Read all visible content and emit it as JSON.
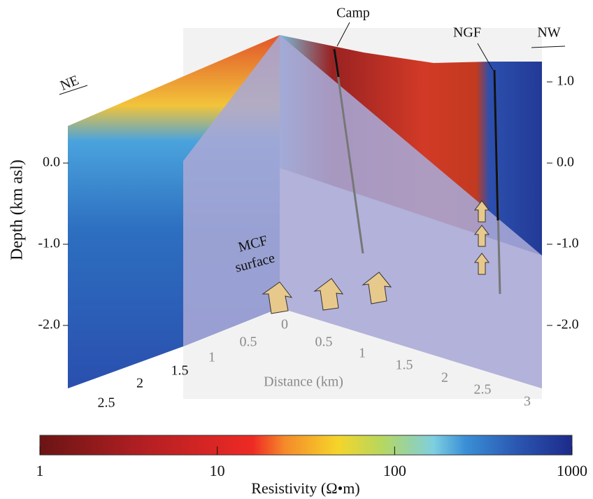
{
  "figure": {
    "labels": {
      "camp": "Camp",
      "ngf": "NGF",
      "nw": "NW",
      "ne": "NE",
      "mcf_1": "MCF",
      "mcf_2": "surface"
    },
    "depth_axis": {
      "label": "Depth (km asl)",
      "lim": [
        1.0,
        -2.0
      ],
      "left_ticks": [
        {
          "value": 0,
          "label": "0.0"
        },
        {
          "value": -1,
          "label": "-1.0"
        },
        {
          "value": -2,
          "label": "-2.0"
        }
      ],
      "right_ticks": [
        {
          "value": 1,
          "label": "1.0"
        },
        {
          "value": 0,
          "label": "0.0"
        },
        {
          "value": -1,
          "label": "-1.0"
        },
        {
          "value": -2,
          "label": "-2.0"
        }
      ]
    },
    "distance_axis": {
      "label": "Distance (km)",
      "left_ticks": [
        2.5,
        2,
        1.5,
        1,
        0.5,
        0
      ],
      "right_ticks": [
        0.5,
        1,
        1.5,
        2,
        2.5,
        3
      ]
    },
    "colorbar": {
      "label": "Resistivity (Ω•m)",
      "log_scale": true,
      "lim": [
        1,
        1000
      ],
      "ticks": [
        1,
        10,
        100,
        1000
      ]
    }
  }
}
